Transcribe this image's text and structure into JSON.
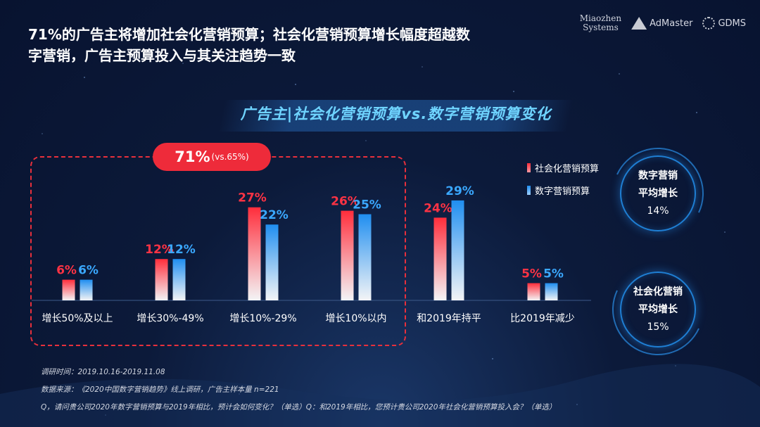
{
  "header": {
    "title": "71%的广告主将增加社会化营销预算；社会化营销预算增长幅度超越数字营销，广告主预算投入与其关注趋势一致",
    "logos": {
      "miaozhen_line1": "Miaozhen",
      "miaozhen_line2": "Systems",
      "admaster": "AdMaster",
      "gdms": "GDMS"
    }
  },
  "highlight": {
    "big": "71%",
    "small": "(vs.65%)"
  },
  "legend": [
    {
      "label": "社会化营销预算",
      "color": "#ff2d3b"
    },
    {
      "label": "数字营销预算",
      "color": "#1f8ef0"
    }
  ],
  "rings": [
    {
      "line1": "数字营销",
      "line2": "平均增长",
      "value": "14%"
    },
    {
      "line1": "社会化营销",
      "line2": "平均增长",
      "value": "15%"
    }
  ],
  "chart_data": {
    "type": "bar",
    "title": "广告主|社会化营销预算vs.数字营销预算变化",
    "categories": [
      "增长50%及以上",
      "增长30%-49%",
      "增长10%-29%",
      "增长10%以内",
      "和2019年持平",
      "比2019年减少"
    ],
    "series": [
      {
        "name": "社会化营销预算",
        "values": [
          6,
          12,
          27,
          26,
          24,
          5
        ],
        "labels": [
          "6%",
          "12%",
          "27%",
          "26%",
          "24%",
          "5%"
        ],
        "color": "#ff2d3b",
        "label_color": "#ff3344"
      },
      {
        "name": "数字营销预算",
        "values": [
          6,
          12,
          22,
          25,
          29,
          5
        ],
        "labels": [
          "6%",
          "12%",
          "22%",
          "25%",
          "29%",
          "5%"
        ],
        "color": "#1f8ef0",
        "label_color": "#3aa8ff"
      }
    ],
    "ylim": [
      0,
      30
    ],
    "xlabel": "",
    "ylabel": ""
  },
  "footnotes": [
    "调研时间：2019.10.16-2019.11.08",
    "数据来源：《2020中国数字营销趋势》线上调研，广告主样本量 n=221",
    "Q，请问贵公司2020年数字营销预算与2019年相比，预计会如何变化？（单选）Q：和2019年相比，您预计贵公司2020年社会化营销预算投入会？（单选）"
  ]
}
